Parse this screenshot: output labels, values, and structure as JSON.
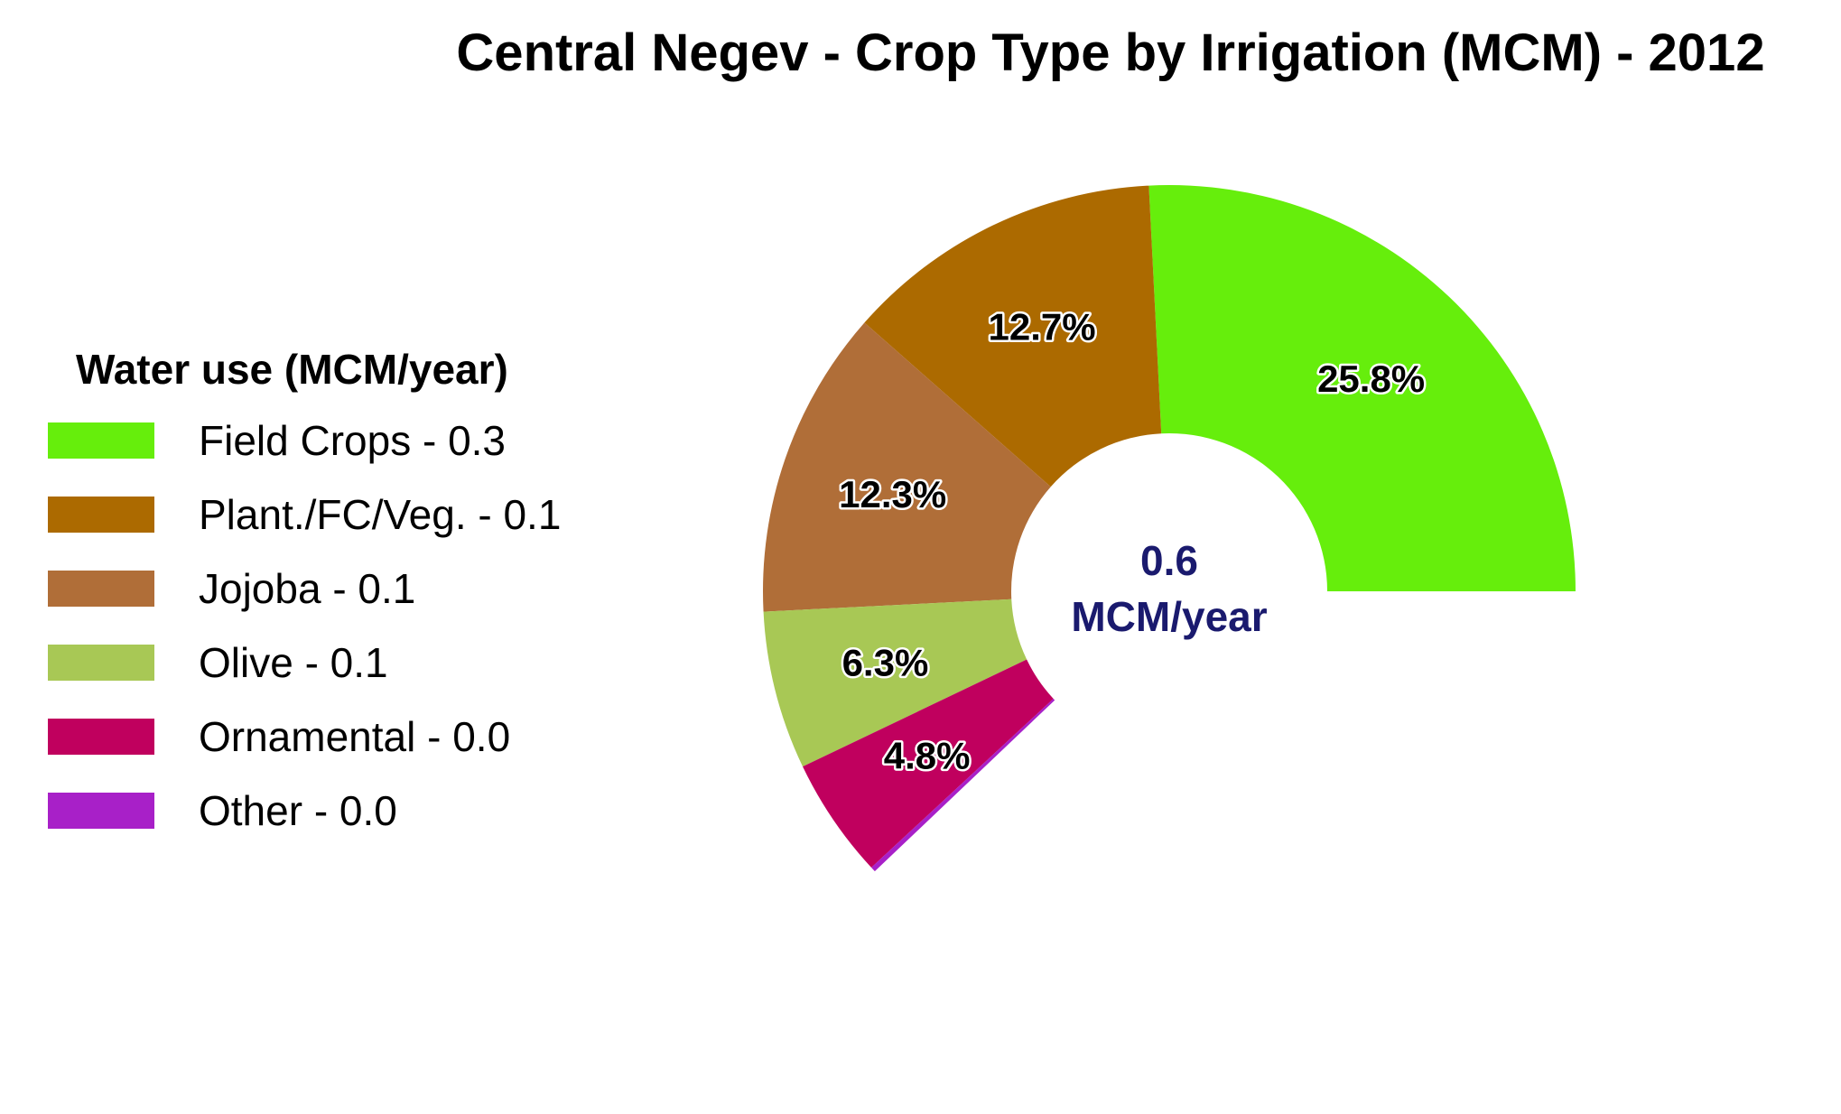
{
  "chart_data": {
    "type": "pie",
    "title": "Central Negev - Crop Type by Irrigation (MCM) - 2012",
    "legend_title": "Water use (MCM/year)",
    "legend_position": "left",
    "center_value": "0.6",
    "center_unit": "MCM/year",
    "center_color": "#1a1a6e",
    "slices": [
      {
        "legend": "Field Crops - 0.3",
        "percent": 25.8,
        "label": "25.8%",
        "color": "#66ee0c"
      },
      {
        "legend": "Plant./FC/Veg. - 0.1",
        "percent": 12.7,
        "label": "12.7%",
        "color": "#ac6a00"
      },
      {
        "legend": "Jojoba - 0.1",
        "percent": 12.3,
        "label": "12.3%",
        "color": "#b06e38"
      },
      {
        "legend": "Olive - 0.1",
        "percent": 6.3,
        "label": "6.3%",
        "color": "#a8c855"
      },
      {
        "legend": "Ornamental - 0.0",
        "percent": 4.8,
        "label": "4.8%",
        "color": "#c0005e"
      },
      {
        "legend": "Other - 0.0",
        "percent": 0.2,
        "label": "",
        "color": "#a820c8"
      }
    ]
  }
}
